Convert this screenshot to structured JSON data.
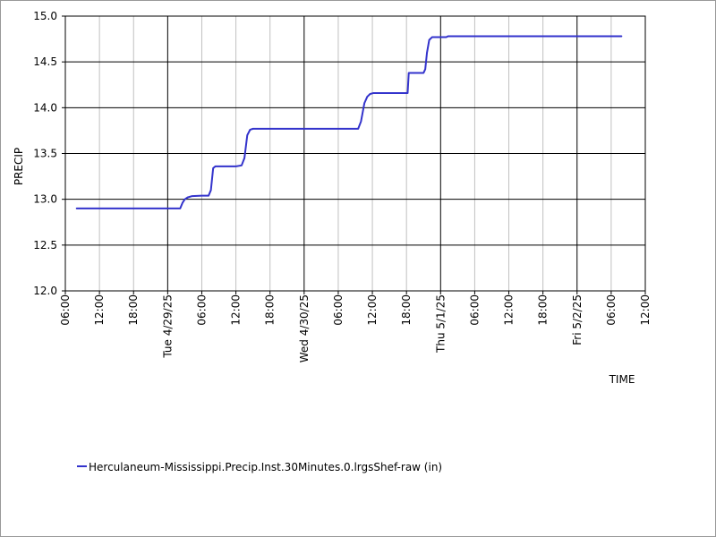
{
  "chart_data": {
    "type": "line",
    "title": "",
    "xlabel": "TIME",
    "ylabel": "PRECIP",
    "ylim": [
      12.0,
      15.0
    ],
    "y_ticks": [
      "12.0",
      "12.5",
      "13.0",
      "13.5",
      "14.0",
      "14.5",
      "15.0"
    ],
    "x_range_hours": [
      0,
      102
    ],
    "x_time_ticks": [
      "06:00",
      "12:00",
      "18:00",
      "06:00",
      "12:00",
      "18:00",
      "06:00",
      "12:00",
      "18:00",
      "06:00",
      "12:00",
      "18:00",
      "06:00",
      "12:00"
    ],
    "x_date_ticks": [
      "Tue 4/29/25",
      "Wed 4/30/25",
      "Thu 5/1/25",
      "Fri 5/2/25"
    ],
    "grid": true,
    "legend_position": "bottom-left",
    "series": [
      {
        "name": "Herculaneum-Mississippi.Precip.Inst.30Minutes.0.lrgsShef-raw (in)",
        "color": "#3333cc",
        "points": [
          [
            2,
            12.9
          ],
          [
            20.2,
            12.9
          ],
          [
            20.6,
            12.96
          ],
          [
            21.0,
            13.0
          ],
          [
            21.5,
            13.02
          ],
          [
            22.3,
            13.035
          ],
          [
            24.0,
            13.04
          ],
          [
            25.2,
            13.04
          ],
          [
            25.6,
            13.1
          ],
          [
            26.0,
            13.34
          ],
          [
            26.4,
            13.36
          ],
          [
            30.0,
            13.36
          ],
          [
            31.0,
            13.37
          ],
          [
            31.5,
            13.45
          ],
          [
            32.0,
            13.7
          ],
          [
            32.5,
            13.76
          ],
          [
            33.0,
            13.77
          ],
          [
            51.5,
            13.77
          ],
          [
            52.0,
            13.85
          ],
          [
            52.6,
            14.05
          ],
          [
            53.1,
            14.12
          ],
          [
            53.6,
            14.15
          ],
          [
            54.2,
            14.16
          ],
          [
            60.2,
            14.16
          ],
          [
            60.4,
            14.38
          ],
          [
            63.0,
            14.38
          ],
          [
            63.3,
            14.42
          ],
          [
            63.6,
            14.6
          ],
          [
            64.0,
            14.74
          ],
          [
            64.5,
            14.77
          ],
          [
            67.0,
            14.77
          ],
          [
            67.3,
            14.78
          ],
          [
            97.8,
            14.78
          ]
        ]
      }
    ]
  }
}
